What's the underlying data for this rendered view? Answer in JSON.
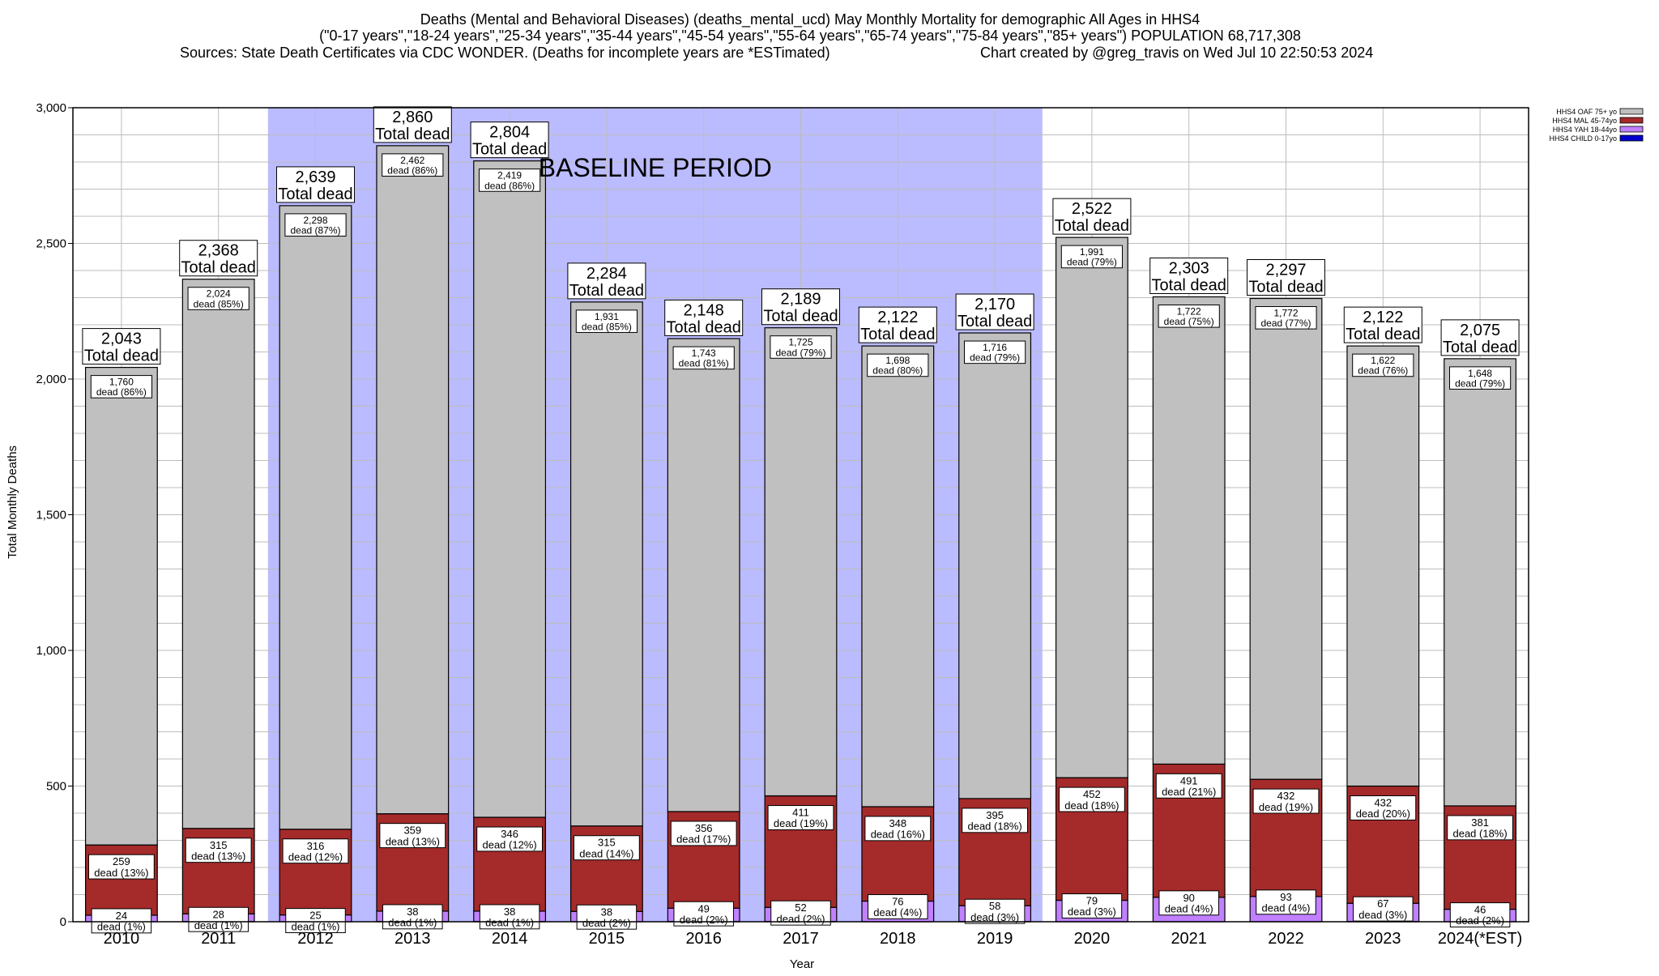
{
  "header": {
    "title_line1": "Deaths (Mental and Behavioral Diseases) (deaths_mental_ucd) May Monthly Mortality for demographic All Ages in HHS4",
    "title_line2": "(\"0-17 years\",\"18-24 years\",\"25-34 years\",\"35-44 years\",\"45-54 years\",\"55-64 years\",\"65-74 years\",\"75-84 years\",\"85+ years\") POPULATION 68,717,308",
    "sources": "Sources: State Death Certificates via CDC WONDER. (Deaths for incomplete years are *ESTimated)",
    "credit": "Chart created by @greg_travis on Wed Jul 10 22:50:53 2024"
  },
  "chart_data": {
    "type": "bar",
    "stacked": true,
    "xlabel": "Year",
    "ylabel": "Total Monthly Deaths",
    "ylim": [
      0,
      3000
    ],
    "yticks": [
      0,
      500,
      1000,
      1500,
      2000,
      2500,
      3000
    ],
    "ytick_labels": [
      "0",
      "500",
      "1,000",
      "1,500",
      "2,000",
      "2,500",
      "3,000"
    ],
    "grid": true,
    "legend_position": "top-right",
    "categories": [
      "2010",
      "2011",
      "2012",
      "2013",
      "2014",
      "2015",
      "2016",
      "2017",
      "2018",
      "2019",
      "2020",
      "2021",
      "2022",
      "2023",
      "2024(*EST)"
    ],
    "totals": [
      2043,
      2368,
      2639,
      2860,
      2804,
      2284,
      2148,
      2189,
      2122,
      2170,
      2522,
      2303,
      2297,
      2122,
      2075
    ],
    "total_labels": [
      "2,043",
      "2,368",
      "2,639",
      "2,860",
      "2,804",
      "2,284",
      "2,148",
      "2,189",
      "2,122",
      "2,170",
      "2,522",
      "2,303",
      "2,297",
      "2,122",
      "2,075"
    ],
    "total_suffix": "Total dead",
    "series": [
      {
        "name": "HHS4 CHILD 0-17yo",
        "color": "#0000cc",
        "values": [
          0,
          1,
          0,
          1,
          1,
          0,
          1,
          1,
          0,
          1,
          0,
          0,
          0,
          1,
          0
        ]
      },
      {
        "name": "HHS4 YAH 18-44yo",
        "color": "#c080ff",
        "values": [
          24,
          28,
          25,
          38,
          38,
          38,
          49,
          52,
          76,
          58,
          79,
          90,
          93,
          67,
          46
        ],
        "labels": [
          "24",
          "28",
          "25",
          "38",
          "38",
          "38",
          "49",
          "52",
          "76",
          "58",
          "79",
          "90",
          "93",
          "67",
          "46"
        ],
        "pct_labels": [
          "dead (1%)",
          "dead (1%)",
          "dead (1%)",
          "dead (1%)",
          "dead (1%)",
          "dead (2%)",
          "dead (2%)",
          "dead (2%)",
          "dead (4%)",
          "dead (3%)",
          "dead (3%)",
          "dead (4%)",
          "dead (4%)",
          "dead (3%)",
          "dead (2%)"
        ]
      },
      {
        "name": "HHS4 MAL 45-74yo",
        "color": "#a52a2a",
        "values": [
          259,
          315,
          316,
          359,
          346,
          315,
          356,
          411,
          348,
          395,
          452,
          491,
          432,
          432,
          381
        ],
        "labels": [
          "259",
          "315",
          "316",
          "359",
          "346",
          "315",
          "356",
          "411",
          "348",
          "395",
          "452",
          "491",
          "432",
          "432",
          "381"
        ],
        "pct_labels": [
          "dead (13%)",
          "dead (13%)",
          "dead (12%)",
          "dead (13%)",
          "dead (12%)",
          "dead (14%)",
          "dead (17%)",
          "dead (19%)",
          "dead (16%)",
          "dead (18%)",
          "dead (18%)",
          "dead (21%)",
          "dead (19%)",
          "dead (20%)",
          "dead (18%)"
        ]
      },
      {
        "name": "HHS4 OAF 75+ yo",
        "color": "#c0c0c0",
        "values": [
          1760,
          2024,
          2298,
          2462,
          2419,
          1931,
          1743,
          1725,
          1698,
          1716,
          1991,
          1722,
          1772,
          1622,
          1648
        ],
        "labels": [
          "1,760",
          "2,024",
          "2,298",
          "2,462",
          "2,419",
          "1,931",
          "1,743",
          "1,725",
          "1,698",
          "1,716",
          "1,991",
          "1,722",
          "1,772",
          "1,622",
          "1,648"
        ],
        "pct_labels": [
          "dead (86%)",
          "dead (85%)",
          "dead (87%)",
          "dead (86%)",
          "dead (86%)",
          "dead (85%)",
          "dead (81%)",
          "dead (79%)",
          "dead (80%)",
          "dead (79%)",
          "dead (79%)",
          "dead (75%)",
          "dead (77%)",
          "dead (76%)",
          "dead (79%)"
        ]
      }
    ],
    "baseline": {
      "label": "BASELINE PERIOD",
      "from": "2012",
      "to": "2019",
      "color": "#bbbbff"
    }
  }
}
